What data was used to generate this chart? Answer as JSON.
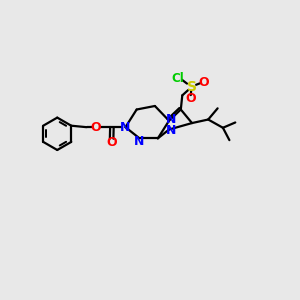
{
  "bg_color": "#e8e8e8",
  "bond_color": "#000000",
  "n_color": "#0000ff",
  "o_color": "#ff0000",
  "s_color": "#cccc00",
  "cl_color": "#00cc00",
  "lw": 1.6,
  "figsize": [
    3.0,
    3.0
  ],
  "dpi": 100,
  "xlim": [
    0,
    10
  ],
  "ylim": [
    0,
    10
  ]
}
